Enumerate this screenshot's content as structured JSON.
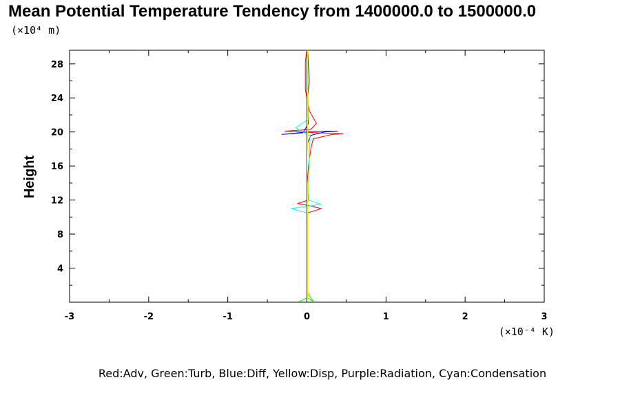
{
  "chart_data": {
    "type": "line",
    "title": "Mean Potential Temperature Tendency from 1400000.0 to 1500000.0",
    "ylabel": "Height",
    "xlabel": "",
    "y_unit_label": "(×10⁴ m)",
    "x_unit_label": "(×10⁻⁴ K)",
    "xlim": [
      -3,
      3
    ],
    "ylim": [
      0,
      29.6
    ],
    "x_ticks": [
      "-3",
      "-2",
      "-1",
      "0",
      "1",
      "2",
      "3"
    ],
    "y_ticks": [
      "4",
      "8",
      "12",
      "16",
      "20",
      "24",
      "28"
    ],
    "legend_text": "Red:Adv, Green:Turb, Blue:Diff, Yellow:Disp, Purple:Radiation, Cyan:Condensation",
    "grid": false,
    "series": [
      {
        "name": "Adv",
        "color": "#ff0000",
        "points": [
          [
            0,
            0.3
          ],
          [
            0.01,
            1
          ],
          [
            0.01,
            10.5
          ],
          [
            0.12,
            10.8
          ],
          [
            0.18,
            11.0
          ],
          [
            0.05,
            11.3
          ],
          [
            -0.12,
            11.6
          ],
          [
            0.02,
            12
          ],
          [
            0.0,
            13.5
          ],
          [
            0.02,
            16
          ],
          [
            0.05,
            18
          ],
          [
            0.08,
            19.2
          ],
          [
            0.32,
            19.7
          ],
          [
            0.46,
            19.8
          ],
          [
            0.12,
            19.9
          ],
          [
            -0.28,
            20.1
          ],
          [
            0.05,
            20.3
          ],
          [
            0.12,
            21
          ],
          [
            0.03,
            22.5
          ],
          [
            -0.02,
            25
          ],
          [
            -0.02,
            28.3
          ],
          [
            0.0,
            29.6
          ]
        ]
      },
      {
        "name": "Turb",
        "color": "#00ff00",
        "points": [
          [
            -0.1,
            0.05
          ],
          [
            0.0,
            0.5
          ],
          [
            0.08,
            0.1
          ],
          [
            0.0,
            1.2
          ],
          [
            0.0,
            29.6
          ]
        ]
      },
      {
        "name": "Diff",
        "color": "#0000ff",
        "points": [
          [
            0,
            0.3
          ],
          [
            0,
            18.5
          ],
          [
            0.05,
            19.6
          ],
          [
            0.22,
            20.0
          ],
          [
            0.39,
            20.1
          ],
          [
            0.05,
            20.05
          ],
          [
            -0.32,
            19.7
          ],
          [
            -0.05,
            19.9
          ],
          [
            0.02,
            21
          ],
          [
            0.0,
            23
          ],
          [
            0.03,
            26
          ],
          [
            0.01,
            29.6
          ]
        ]
      },
      {
        "name": "Condensation",
        "color": "#00ffff",
        "points": [
          [
            0,
            0.3
          ],
          [
            0,
            10.5
          ],
          [
            -0.2,
            11.0
          ],
          [
            0.18,
            11.5
          ],
          [
            0.02,
            12
          ],
          [
            0.02,
            14
          ],
          [
            0.03,
            17
          ],
          [
            0.04,
            19.5
          ],
          [
            -0.14,
            20.5
          ],
          [
            0.02,
            21.5
          ],
          [
            0.0,
            29.6
          ]
        ]
      },
      {
        "name": "Disp",
        "color": "#ffff00",
        "points": [
          [
            0.01,
            0.3
          ],
          [
            0.01,
            14
          ],
          [
            0.04,
            16.5
          ],
          [
            0.01,
            18
          ],
          [
            0.01,
            29.6
          ]
        ]
      },
      {
        "name": "Radiation",
        "color": "#800080",
        "points": [
          [
            0.0,
            0.3
          ],
          [
            0.0,
            29.6
          ]
        ]
      }
    ]
  }
}
